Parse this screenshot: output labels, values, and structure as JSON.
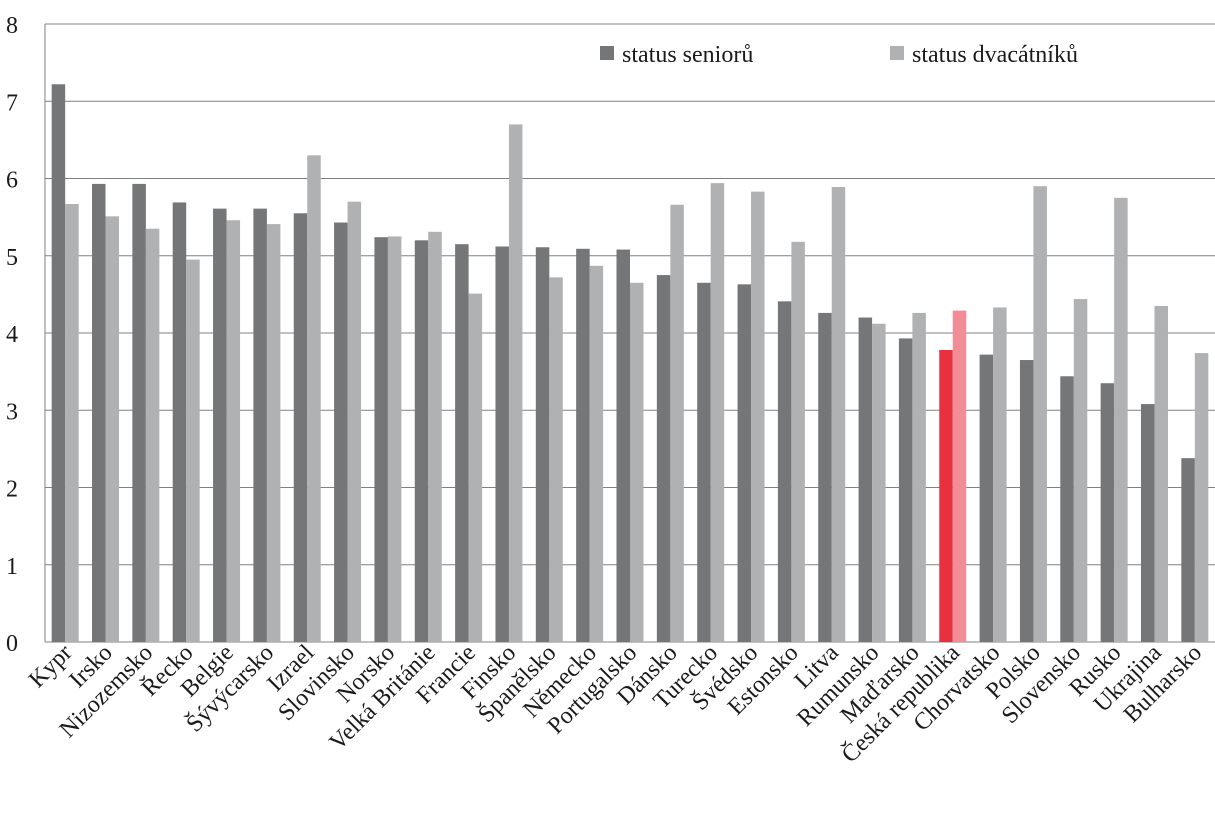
{
  "chart_data": {
    "type": "bar",
    "title": "",
    "xlabel": "",
    "ylabel": "",
    "ylim": [
      0,
      8
    ],
    "yticks": [
      "0",
      "1",
      "2",
      "3",
      "4",
      "5",
      "6",
      "7",
      "8"
    ],
    "grid": "horizontal",
    "legend_position": "top-right",
    "categories": [
      "Kypr",
      "Irsko",
      "Nizozemsko",
      "Řecko",
      "Belgie",
      "Šývýcarsko",
      "Izrael",
      "Slovinsko",
      "Norsko",
      "Velká Británie",
      "Francie",
      "Finsko",
      "Španělsko",
      "Německo",
      "Portugalsko",
      "Dánsko",
      "Turecko",
      "Švédsko",
      "Estonsko",
      "Litva",
      "Rumunsko",
      "Maďarsko",
      "Česká republika",
      "Chorvatsko",
      "Polsko",
      "Slovensko",
      "Rusko",
      "Ukrajina",
      "Bulharsko"
    ],
    "highlight_category": "Česká republika",
    "series": [
      {
        "name": "status seniorů",
        "color": "#757678",
        "highlight_color": "#e8313f",
        "values": [
          7.22,
          5.93,
          5.93,
          5.69,
          5.61,
          5.61,
          5.55,
          5.43,
          5.24,
          5.2,
          5.15,
          5.12,
          5.11,
          5.09,
          5.08,
          4.75,
          4.65,
          4.63,
          4.41,
          4.26,
          4.2,
          3.93,
          3.78,
          3.72,
          3.65,
          3.44,
          3.35,
          3.08,
          2.38
        ]
      },
      {
        "name": "status dvacátníků",
        "color": "#b0b1b3",
        "highlight_color": "#f28d98",
        "values": [
          5.67,
          5.51,
          5.35,
          4.95,
          5.46,
          5.41,
          6.3,
          5.7,
          5.25,
          5.31,
          4.51,
          6.7,
          4.72,
          4.87,
          4.65,
          5.66,
          5.94,
          5.83,
          5.18,
          5.89,
          4.12,
          4.26,
          4.29,
          4.33,
          5.9,
          4.44,
          5.75,
          4.35,
          3.74
        ]
      }
    ]
  }
}
